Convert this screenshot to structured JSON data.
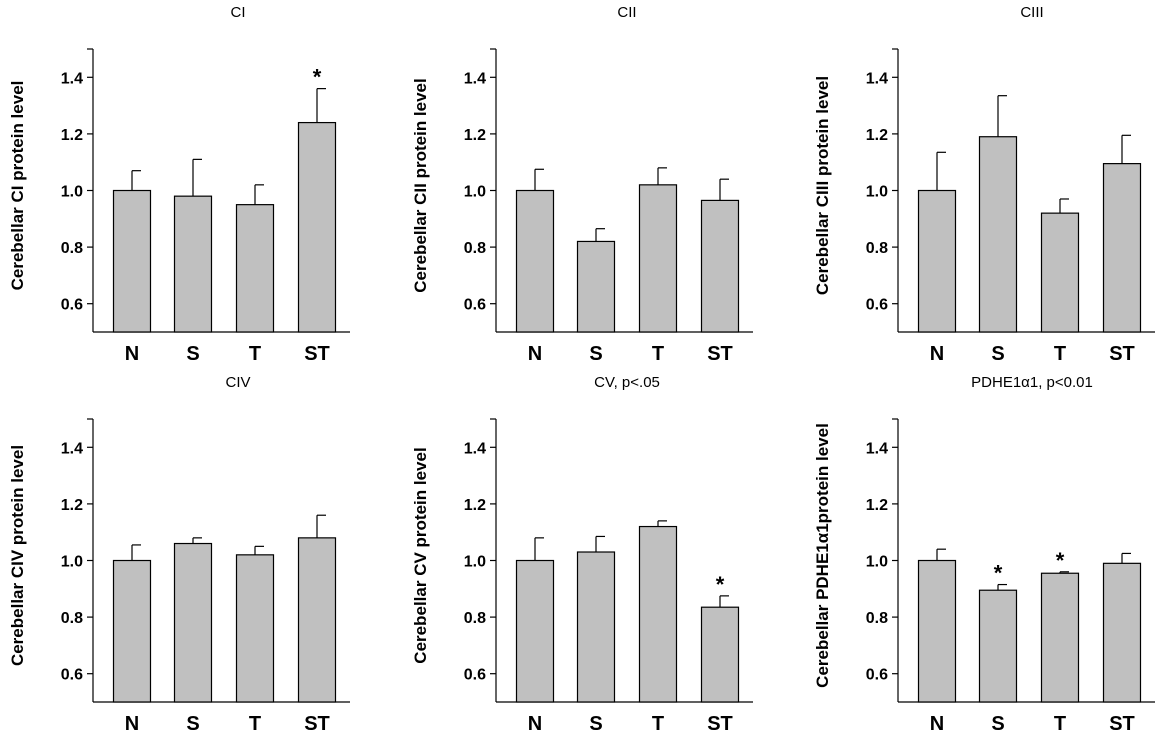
{
  "chart_data": [
    {
      "type": "bar",
      "title": "CI",
      "ylabel": "Cerebellar CI protein level",
      "categories": [
        "N",
        "S",
        "T",
        "ST"
      ],
      "values": [
        1.0,
        0.98,
        0.95,
        1.24
      ],
      "errors": [
        0.07,
        0.13,
        0.07,
        0.12
      ],
      "significant": [
        false,
        false,
        false,
        true
      ],
      "ylim": [
        0.5,
        1.5
      ],
      "yticks": [
        "0.6",
        "0.8",
        "1.0",
        "1.2",
        "1.4"
      ],
      "marker": "*",
      "bar_color": "#c0c0c0"
    },
    {
      "type": "bar",
      "title": "CII",
      "ylabel": "Cerebellar CII protein level",
      "categories": [
        "N",
        "S",
        "T",
        "ST"
      ],
      "values": [
        1.0,
        0.82,
        1.02,
        0.965
      ],
      "errors": [
        0.075,
        0.045,
        0.06,
        0.075
      ],
      "significant": [
        false,
        false,
        false,
        false
      ],
      "ylim": [
        0.5,
        1.5
      ],
      "yticks": [
        "0.6",
        "0.8",
        "1.0",
        "1.2",
        "1.4"
      ],
      "marker": "*",
      "bar_color": "#c0c0c0"
    },
    {
      "type": "bar",
      "title": "CIII",
      "ylabel": "Cerebellar CIII protein level",
      "categories": [
        "N",
        "S",
        "T",
        "ST"
      ],
      "values": [
        1.0,
        1.19,
        0.92,
        1.095
      ],
      "errors": [
        0.135,
        0.145,
        0.05,
        0.1
      ],
      "significant": [
        false,
        false,
        false,
        false
      ],
      "ylim": [
        0.5,
        1.5
      ],
      "yticks": [
        "0.6",
        "0.8",
        "1.0",
        "1.2",
        "1.4"
      ],
      "marker": "*",
      "bar_color": "#c0c0c0"
    },
    {
      "type": "bar",
      "title": "CIV",
      "ylabel": "Cerebellar CIV protein level",
      "categories": [
        "N",
        "S",
        "T",
        "ST"
      ],
      "values": [
        1.0,
        1.06,
        1.02,
        1.08
      ],
      "errors": [
        0.055,
        0.02,
        0.03,
        0.08
      ],
      "significant": [
        false,
        false,
        false,
        false
      ],
      "ylim": [
        0.5,
        1.5
      ],
      "yticks": [
        "0.6",
        "0.8",
        "1.0",
        "1.2",
        "1.4"
      ],
      "marker": "*",
      "bar_color": "#c0c0c0"
    },
    {
      "type": "bar",
      "title": "CV, p<.05",
      "ylabel": "Cerebellar CV protein level",
      "categories": [
        "N",
        "S",
        "T",
        "ST"
      ],
      "values": [
        1.0,
        1.03,
        1.12,
        0.835
      ],
      "errors": [
        0.08,
        0.055,
        0.02,
        0.04
      ],
      "significant": [
        false,
        false,
        false,
        true
      ],
      "ylim": [
        0.5,
        1.5
      ],
      "yticks": [
        "0.6",
        "0.8",
        "1.0",
        "1.2",
        "1.4"
      ],
      "marker": "*",
      "bar_color": "#c0c0c0"
    },
    {
      "type": "bar",
      "title": "PDHE1α1, p<0.01",
      "ylabel": "Cerebellar PDHE1α1protein level",
      "categories": [
        "N",
        "S",
        "T",
        "ST"
      ],
      "values": [
        1.0,
        0.895,
        0.955,
        0.99
      ],
      "errors": [
        0.04,
        0.02,
        0.005,
        0.035
      ],
      "significant": [
        false,
        true,
        true,
        false
      ],
      "ylim": [
        0.5,
        1.5
      ],
      "yticks": [
        "0.6",
        "0.8",
        "1.0",
        "1.2",
        "1.4"
      ],
      "marker": "*",
      "bar_color": "#c0c0c0"
    }
  ]
}
